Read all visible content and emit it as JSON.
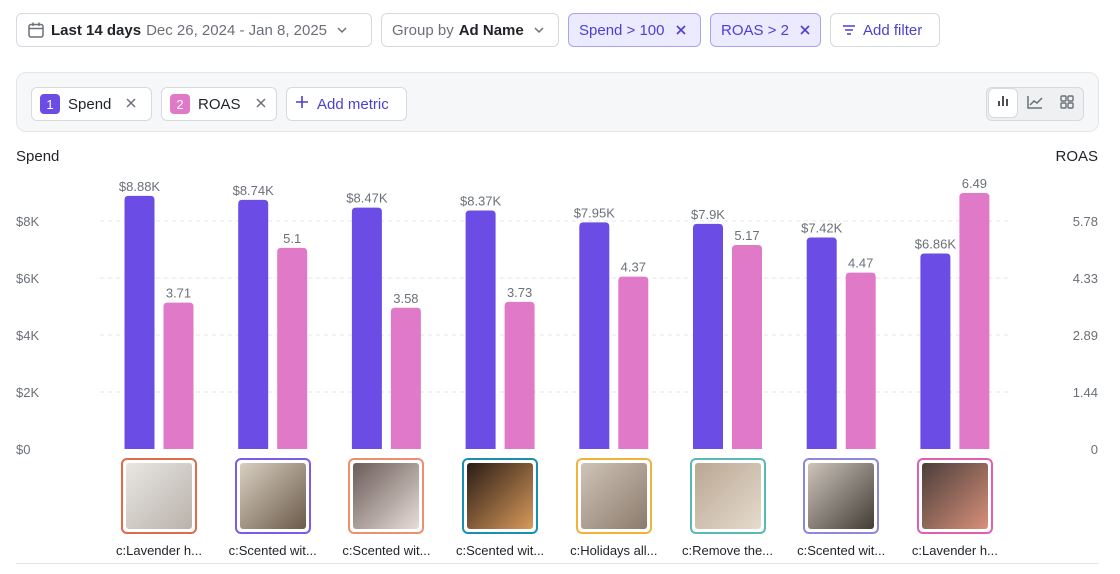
{
  "toolbar": {
    "date_label": "Last 14 days",
    "date_range": "Dec 26, 2024 - Jan 8, 2025",
    "group_prefix": "Group by",
    "group_value": "Ad Name",
    "filters": [
      "Spend > 100",
      "ROAS > 2"
    ],
    "add_filter": "Add filter"
  },
  "metrics": {
    "items": [
      {
        "num": "1",
        "label": "Spend",
        "color": "#6b4de6"
      },
      {
        "num": "2",
        "label": "ROAS",
        "color": "#e07ac8"
      }
    ],
    "add_metric": "Add metric"
  },
  "chart_data": {
    "type": "bar",
    "left_axis_title": "Spend",
    "right_axis_title": "ROAS",
    "left_ticks": [
      "$0",
      "$2K",
      "$4K",
      "$6K",
      "$8K"
    ],
    "right_ticks": [
      "0",
      "1.44",
      "2.89",
      "4.33",
      "5.78"
    ],
    "left_ylim": [
      0,
      9000
    ],
    "right_ylim": [
      0,
      6.5
    ],
    "categories": [
      "c:Lavender h...",
      "c:Scented wit...",
      "c:Scented wit...",
      "c:Scented wit...",
      "c:Holidays all...",
      "c:Remove the...",
      "c:Scented wit...",
      "c:Lavender h..."
    ],
    "series": [
      {
        "name": "Spend",
        "axis": "left",
        "color": "#6b4de6",
        "values": [
          8880,
          8740,
          8470,
          8370,
          7950,
          7900,
          7420,
          6860
        ],
        "labels": [
          "$8.88K",
          "$8.74K",
          "$8.47K",
          "$8.37K",
          "$7.95K",
          "$7.9K",
          "$7.42K",
          "$6.86K"
        ]
      },
      {
        "name": "ROAS",
        "axis": "right",
        "color": "#e07ac8",
        "values": [
          3.71,
          5.1,
          3.58,
          3.73,
          4.37,
          5.17,
          4.47,
          6.49
        ],
        "labels": [
          "3.71",
          "5.1",
          "3.58",
          "3.73",
          "4.37",
          "5.17",
          "4.47",
          "6.49"
        ]
      }
    ],
    "grid": true
  },
  "thumbnails": [
    {
      "border": "#e26a4a",
      "colors": [
        "#e9e6e2",
        "#b8b2aa"
      ]
    },
    {
      "border": "#7a5ce8",
      "colors": [
        "#d8cfc2",
        "#6b5a48"
      ]
    },
    {
      "border": "#ee8f70",
      "colors": [
        "#6a5c58",
        "#e8ddd8"
      ]
    },
    {
      "border": "#1c8fb0",
      "colors": [
        "#2a1c16",
        "#d89a5a"
      ]
    },
    {
      "border": "#f0b43c",
      "colors": [
        "#cfc4b8",
        "#8b7b6c"
      ]
    },
    {
      "border": "#58b9b9",
      "colors": [
        "#b9a793",
        "#e6dbcd"
      ]
    },
    {
      "border": "#8c8ad8",
      "colors": [
        "#cdc5bb",
        "#433c36"
      ]
    },
    {
      "border": "#e05fb0",
      "colors": [
        "#4a3e3a",
        "#d8907a"
      ]
    }
  ]
}
